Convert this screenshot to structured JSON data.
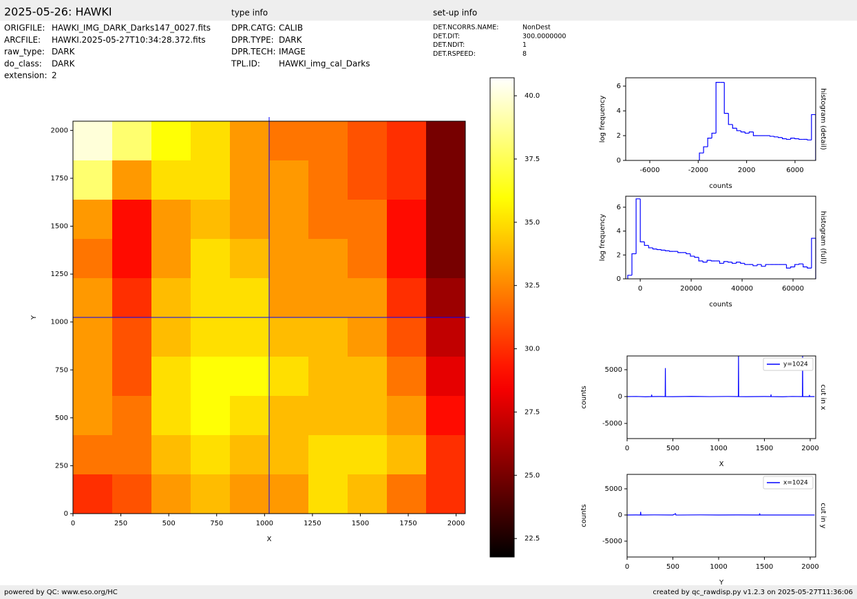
{
  "header": {
    "title": "2025-05-26: HAWKI",
    "type_heading": "type info",
    "setup_heading": "set-up info"
  },
  "file_info": [
    {
      "key": "ORIGFILE:",
      "value": "HAWKI_IMG_DARK_Darks147_0027.fits"
    },
    {
      "key": "ARCFILE:",
      "value": "HAWKI.2025-05-27T10:34:28.372.fits"
    },
    {
      "key": "raw_type:",
      "value": "DARK"
    },
    {
      "key": "do_class:",
      "value": "DARK"
    },
    {
      "key": "extension:",
      "value": "2"
    }
  ],
  "type_info": [
    {
      "key": "DPR.CATG:",
      "value": "CALIB"
    },
    {
      "key": "DPR.TYPE:",
      "value": "DARK"
    },
    {
      "key": "DPR.TECH:",
      "value": "IMAGE"
    },
    {
      "key": "TPL.ID:",
      "value": "HAWKI_img_cal_Darks"
    }
  ],
  "setup_info": [
    {
      "key": "DET.NCORRS.NAME:",
      "value": "NonDest"
    },
    {
      "key": "DET.DIT:",
      "value": "300.0000000"
    },
    {
      "key": "DET.NDIT:",
      "value": "1"
    },
    {
      "key": "DET.RSPEED:",
      "value": "8"
    }
  ],
  "footer": {
    "left": "powered by QC: www.eso.org/HC",
    "right": "created by qc_rawdisp.py v1.2.3 on 2025-05-27T11:36:06"
  },
  "chart_data": [
    {
      "type": "image",
      "xlabel": "X",
      "ylabel": "Y",
      "xlim": [
        0,
        2048
      ],
      "ylim": [
        0,
        2048
      ],
      "xticks": [
        0,
        250,
        500,
        750,
        1000,
        1250,
        1500,
        1750,
        2000
      ],
      "yticks": [
        0,
        250,
        500,
        750,
        1000,
        1250,
        1500,
        1750,
        2000
      ],
      "colormap": "hot",
      "crosshair": {
        "x": 1024,
        "y": 1024,
        "color": "#0000ff"
      },
      "z": [
        [
          40,
          38,
          36,
          35,
          33,
          32,
          32,
          31,
          30,
          25
        ],
        [
          38,
          33,
          35,
          35,
          33,
          33,
          32,
          31,
          30,
          25
        ],
        [
          33,
          29,
          33,
          34,
          33,
          33,
          32,
          32,
          29,
          25
        ],
        [
          32,
          29,
          33,
          35,
          34,
          33,
          33,
          32,
          29,
          25
        ],
        [
          33,
          30,
          34,
          35,
          35,
          33,
          33,
          33,
          30,
          26
        ],
        [
          33,
          31,
          34,
          35,
          35,
          34,
          34,
          33,
          31,
          27
        ],
        [
          33,
          31,
          35,
          36,
          36,
          35,
          34,
          34,
          32,
          28
        ],
        [
          33,
          32,
          35,
          36,
          35,
          34,
          34,
          34,
          33,
          29
        ],
        [
          32,
          32,
          34,
          35,
          34,
          34,
          35,
          35,
          34,
          30
        ],
        [
          30,
          31,
          33,
          34,
          33,
          33,
          35,
          34,
          32,
          30
        ]
      ],
      "colorbar": {
        "lim": [
          21.77,
          40.71
        ],
        "ticks": [
          22.5,
          {
            "value": 25,
            "label": "25.0"
          },
          27.5,
          {
            "value": 30,
            "label": "30.0"
          },
          32.5,
          {
            "value": 35,
            "label": "35.0"
          },
          37.5,
          {
            "value": 40,
            "label": "40.0"
          }
        ]
      }
    },
    {
      "type": "histogram",
      "xlabel": "counts",
      "ylabel": "log frequency",
      "side_title": "histogram (detail)",
      "color": "#0000ff",
      "xlim": [
        -7990,
        7710
      ],
      "ylim": [
        0,
        6.67
      ],
      "xticks": [
        -6000,
        -2000,
        2000,
        6000
      ],
      "yticks": [
        0,
        2,
        4,
        6
      ],
      "bins": [
        -1900,
        -1557,
        -1214,
        -871,
        -528,
        -185,
        158,
        501,
        844,
        1187,
        1530,
        1873,
        2216,
        2559,
        2902,
        3245,
        3588,
        3931,
        4274,
        4617,
        4960,
        5303,
        5646,
        5989,
        6332,
        6675,
        7018,
        7361,
        7704
      ],
      "counts": [
        0.6,
        1.1,
        1.8,
        2.2,
        6.3,
        6.3,
        3.8,
        2.9,
        2.6,
        2.4,
        2.3,
        2.2,
        2.3,
        2.0,
        2.0,
        2.0,
        2.0,
        1.95,
        1.9,
        1.85,
        1.75,
        1.7,
        1.8,
        1.75,
        1.7,
        1.7,
        1.65,
        3.7
      ]
    },
    {
      "type": "histogram",
      "xlabel": "counts",
      "ylabel": "log frequency",
      "side_title": "histogram (full)",
      "color": "#0000ff",
      "xlim": [
        -5700,
        68900
      ],
      "ylim": [
        0,
        6.92
      ],
      "xticks": [
        0,
        20000,
        40000,
        60000
      ],
      "yticks": [
        0,
        2,
        4,
        6
      ],
      "bins": [
        -4900,
        -3260,
        -1620,
        20,
        1660,
        3300,
        4940,
        6580,
        8220,
        9860,
        11500,
        13140,
        14780,
        16420,
        18060,
        19700,
        21340,
        22980,
        24620,
        26260,
        27900,
        29540,
        31180,
        32820,
        34460,
        36100,
        37740,
        39380,
        41020,
        42660,
        44300,
        45940,
        47580,
        49220,
        50860,
        52500,
        54140,
        55780,
        57420,
        59060,
        60700,
        62340,
        63980,
        65620,
        67260,
        68900
      ],
      "counts": [
        0.3,
        2.1,
        6.7,
        3.1,
        2.8,
        2.6,
        2.5,
        2.45,
        2.4,
        2.35,
        2.3,
        2.3,
        2.2,
        2.2,
        2.1,
        1.9,
        1.8,
        1.5,
        1.4,
        1.55,
        1.5,
        1.5,
        1.3,
        1.45,
        1.4,
        1.3,
        1.4,
        1.3,
        1.2,
        1.2,
        1.1,
        1.2,
        1.05,
        1.2,
        1.2,
        1.2,
        1.2,
        1.2,
        0.9,
        1.0,
        1.2,
        1.25,
        1.0,
        0.9,
        3.4
      ]
    },
    {
      "type": "line",
      "xlabel": "X",
      "ylabel": "counts",
      "side_title": "cut in x",
      "legend": "upper right",
      "xlim": [
        0,
        2060
      ],
      "ylim": [
        -7820,
        7560
      ],
      "xticks": [
        0,
        500,
        1000,
        1500,
        2000
      ],
      "yticks": [
        -5000,
        0,
        5000
      ],
      "x": [
        0,
        100,
        200,
        265,
        268,
        271,
        350,
        416,
        418,
        420,
        500,
        700,
        900,
        1100,
        1215,
        1217,
        1219,
        1300,
        1500,
        1570,
        1572,
        1574,
        1700,
        1800,
        1915,
        1917,
        1919,
        1990,
        1992,
        1994,
        2047
      ],
      "series": [
        {
          "name": "y=1024",
          "color": "#0000ff",
          "values": [
            0,
            20,
            -30,
            0,
            350,
            0,
            10,
            0,
            5300,
            0,
            -20,
            30,
            -10,
            20,
            0,
            7500,
            0,
            -20,
            10,
            0,
            400,
            0,
            -30,
            20,
            0,
            7500,
            0,
            0,
            300,
            0,
            0
          ]
        }
      ]
    },
    {
      "type": "line",
      "xlabel": "Y",
      "ylabel": "counts",
      "side_title": "cut in y",
      "legend": "upper right",
      "xlim": [
        0,
        2060
      ],
      "ylim": [
        -8030,
        7760
      ],
      "xticks": [
        0,
        500,
        1000,
        1500,
        2000
      ],
      "yticks": [
        -5000,
        0,
        5000
      ],
      "x": [
        0,
        100,
        145,
        148,
        151,
        300,
        500,
        530,
        533,
        536,
        800,
        1000,
        1200,
        1445,
        1448,
        1451,
        1700,
        2047
      ],
      "series": [
        {
          "name": "x=1024",
          "color": "#0000ff",
          "values": [
            0,
            10,
            0,
            600,
            0,
            20,
            0,
            250,
            0,
            -10,
            20,
            0,
            10,
            0,
            300,
            0,
            0,
            0
          ]
        }
      ]
    }
  ]
}
